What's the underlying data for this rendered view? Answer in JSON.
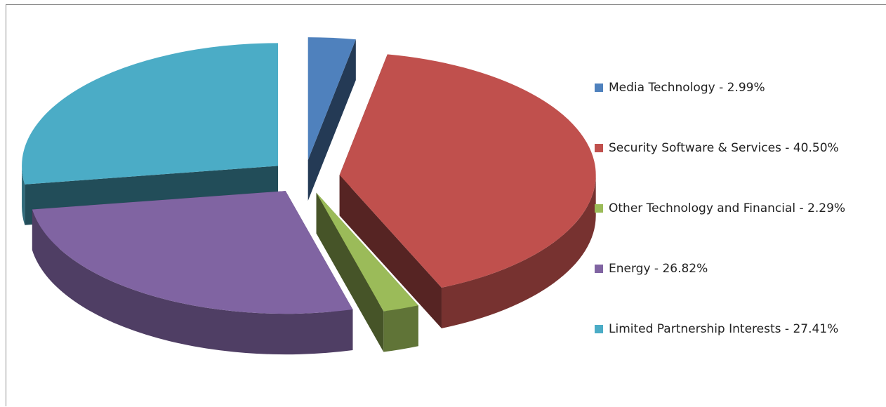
{
  "chart_data": {
    "type": "pie",
    "style": "3d-exploded",
    "slices": [
      {
        "label": "Media Technology",
        "value": 2.99,
        "display": "2.99%",
        "color": "#4f81bd"
      },
      {
        "label": "Security Software & Services",
        "value": 40.5,
        "display": "40.50%",
        "color": "#c0504d"
      },
      {
        "label": "Other Technology and Financial",
        "value": 2.29,
        "display": "2.29%",
        "color": "#9bbb59"
      },
      {
        "label": "Energy",
        "value": 26.82,
        "display": "26.82%",
        "color": "#8064a2"
      },
      {
        "label": "Limited Partnership Interests",
        "value": 27.41,
        "display": "27.41%",
        "color": "#4bacc6"
      }
    ],
    "legend": {
      "position": "right",
      "items": [
        "Media Technology - 2.99%",
        "Security Software & Services - 40.50%",
        "Other Technology and Financial - 2.29%",
        "Energy - 26.82%",
        "Limited Partnership Interests - 27.41%"
      ]
    }
  }
}
